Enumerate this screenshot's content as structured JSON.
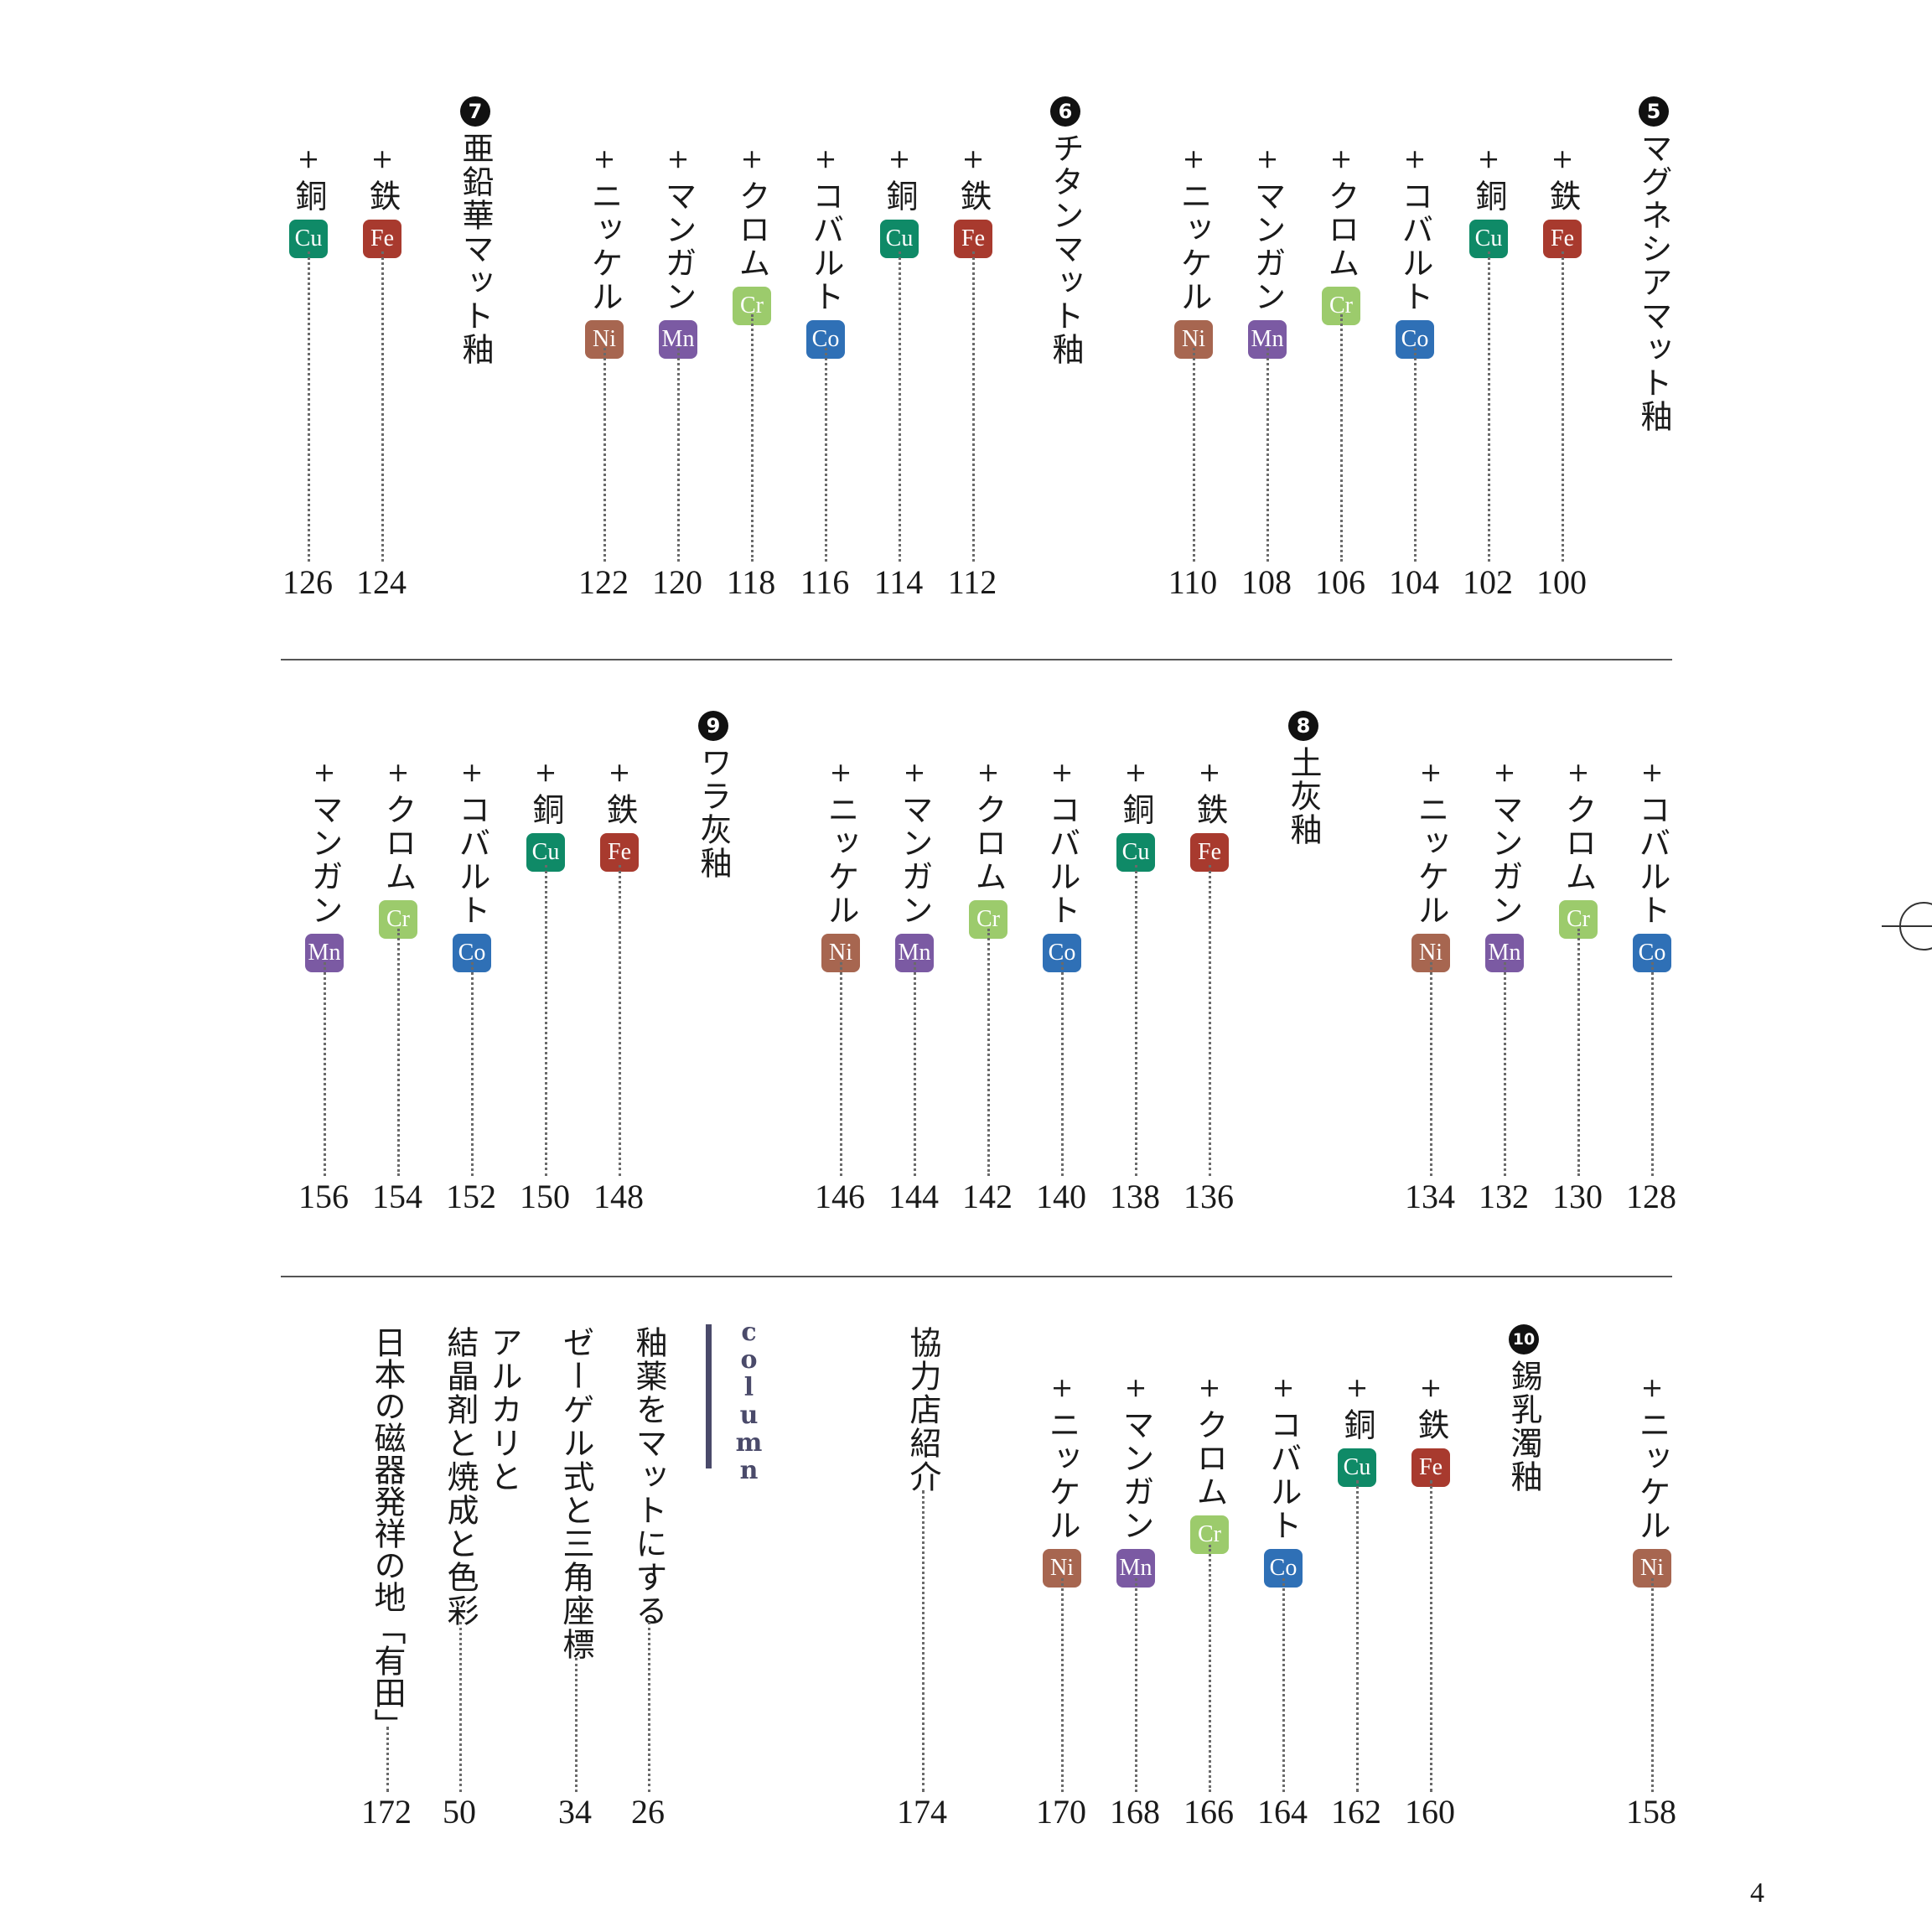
{
  "colors": {
    "Fe": "#a83a2e",
    "Cu": "#0f8a67",
    "Co": "#2f70b6",
    "Cr": "#9ccb6c",
    "Mn": "#7b5aa3",
    "Ni": "#a76650"
  },
  "headings": {
    "h5": {
      "num": "5",
      "title": "マグネシアマット釉"
    },
    "h6": {
      "num": "6",
      "title": "チタンマット釉"
    },
    "h7": {
      "num": "7",
      "title": "亜鉛華マット釉"
    },
    "h8": {
      "num": "8",
      "title": "土灰釉"
    },
    "h9": {
      "num": "9",
      "title": "ワラ灰釉"
    },
    "h10": {
      "num": "10",
      "title": "錫乳濁釉"
    }
  },
  "labels": {
    "fe": "鉄",
    "cu": "銅",
    "co": "コバルト",
    "cr": "クロム",
    "mn": "マンガン",
    "ni": "ニッケル",
    "plus": "+"
  },
  "elements": {
    "fe": "Fe",
    "cu": "Cu",
    "co": "Co",
    "cr": "Cr",
    "mn": "Mn",
    "ni": "Ni"
  },
  "pages": {
    "r1": [
      "100",
      "102",
      "104",
      "106",
      "108",
      "110",
      "112",
      "114",
      "116",
      "118",
      "120",
      "122",
      "124",
      "126"
    ],
    "r2": [
      "128",
      "130",
      "132",
      "134",
      "136",
      "138",
      "140",
      "142",
      "144",
      "146",
      "148",
      "150",
      "152",
      "154",
      "156"
    ],
    "r3": [
      "158",
      "160",
      "162",
      "164",
      "166",
      "168",
      "170"
    ]
  },
  "extra": {
    "kyoryoku": {
      "title": "協力店紹介",
      "page": "174"
    }
  },
  "column": {
    "label": "column",
    "items": [
      {
        "title": "釉薬をマットにする",
        "page": "26"
      },
      {
        "title": "ゼーゲル式と三角座標",
        "page": "34"
      },
      {
        "title": "アルカリと",
        "title2": "結晶剤と焼成と色彩",
        "page": "50"
      },
      {
        "title": "日本の磁器発祥の地「有田」",
        "page": "172"
      }
    ]
  },
  "folio": "4"
}
